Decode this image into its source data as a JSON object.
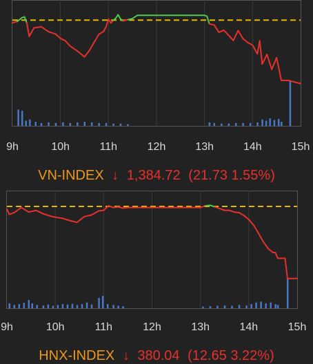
{
  "colors": {
    "background": "#222222",
    "up_line": "#4fc84f",
    "down_line": "#e8302d",
    "reference_line": "#e6b800",
    "volume_bar": "#4a78c9",
    "index_name": "#f0961b",
    "change_text": "#e8302d"
  },
  "chart_data": [
    {
      "type": "line",
      "name": "VN-INDEX",
      "x_tick_labels": [
        "9h",
        "10h",
        "11h",
        "12h",
        "13h",
        "14h",
        "15h"
      ],
      "xlim_hours": [
        9,
        15
      ],
      "grid": true,
      "reference_value": 1406.45,
      "ylim": [
        1378,
        1411
      ],
      "price": {
        "x": [
          9.0,
          9.1,
          9.2,
          9.25,
          9.3,
          9.35,
          9.45,
          9.6,
          9.75,
          9.9,
          10.0,
          10.1,
          10.2,
          10.35,
          10.5,
          10.6,
          10.7,
          10.8,
          10.9,
          10.95,
          11.0,
          11.05,
          11.1,
          11.15,
          11.2,
          11.25,
          11.3,
          11.4,
          11.5,
          11.6,
          11.7,
          11.8,
          12.0,
          13.0,
          13.05,
          13.1,
          13.2,
          13.3,
          13.4,
          13.5,
          13.6,
          13.7,
          13.8,
          13.9,
          14.0,
          14.1,
          14.15,
          14.2,
          14.3,
          14.4,
          14.5,
          14.6,
          14.75,
          15.0
        ],
        "y": [
          1405.5,
          1406.0,
          1407.3,
          1407.6,
          1405.5,
          1400.9,
          1403.8,
          1404.2,
          1402.5,
          1401.7,
          1400.2,
          1399.4,
          1397.6,
          1395.9,
          1393.9,
          1396.0,
          1398.8,
          1401.6,
          1402.6,
          1404.2,
          1406.8,
          1405.5,
          1406.4,
          1407.1,
          1408.3,
          1406.9,
          1406.2,
          1406.6,
          1407.0,
          1408.1,
          1408.1,
          1408.1,
          1408.1,
          1408.1,
          1407.8,
          1405.2,
          1404.8,
          1402.3,
          1403.0,
          1401.3,
          1399.5,
          1402.9,
          1400.1,
          1398.8,
          1397.9,
          1394.9,
          1399.4,
          1391.4,
          1394.7,
          1389.6,
          1393.6,
          1385.8,
          1385.8,
          1384.72
        ]
      },
      "volume": [
        {
          "x": 9.12,
          "v": 0.28
        },
        {
          "x": 9.2,
          "v": 0.26
        },
        {
          "x": 9.28,
          "v": 0.09
        },
        {
          "x": 9.36,
          "v": 0.11
        },
        {
          "x": 9.48,
          "v": 0.07
        },
        {
          "x": 9.6,
          "v": 0.05
        },
        {
          "x": 9.75,
          "v": 0.06
        },
        {
          "x": 9.9,
          "v": 0.05
        },
        {
          "x": 10.05,
          "v": 0.06
        },
        {
          "x": 10.2,
          "v": 0.05
        },
        {
          "x": 10.35,
          "v": 0.06
        },
        {
          "x": 10.5,
          "v": 0.07
        },
        {
          "x": 10.65,
          "v": 0.06
        },
        {
          "x": 10.8,
          "v": 0.05
        },
        {
          "x": 10.95,
          "v": 0.05
        },
        {
          "x": 11.1,
          "v": 0.04
        },
        {
          "x": 11.25,
          "v": 0.04
        },
        {
          "x": 11.4,
          "v": 0.03
        },
        {
          "x": 13.1,
          "v": 0.06
        },
        {
          "x": 13.2,
          "v": 0.05
        },
        {
          "x": 13.35,
          "v": 0.04
        },
        {
          "x": 13.5,
          "v": 0.04
        },
        {
          "x": 13.65,
          "v": 0.05
        },
        {
          "x": 13.8,
          "v": 0.05
        },
        {
          "x": 13.95,
          "v": 0.05
        },
        {
          "x": 14.1,
          "v": 0.06
        },
        {
          "x": 14.2,
          "v": 0.11
        },
        {
          "x": 14.28,
          "v": 0.09
        },
        {
          "x": 14.36,
          "v": 0.13
        },
        {
          "x": 14.45,
          "v": 0.1
        },
        {
          "x": 14.54,
          "v": 0.12
        },
        {
          "x": 14.6,
          "v": 0.07
        },
        {
          "x": 14.78,
          "v": 0.78
        }
      ],
      "label": {
        "name": "VN-INDEX",
        "arrow": "↓",
        "value": "1,384.72",
        "change": "(21.73 1.55%)"
      }
    },
    {
      "type": "line",
      "name": "HNX-INDEX",
      "x_tick_labels": [
        "9h",
        "10h",
        "11h",
        "12h",
        "13h",
        "14h",
        "15h"
      ],
      "xlim_hours": [
        9,
        15
      ],
      "grid": true,
      "reference_value": 392.69,
      "ylim": [
        377,
        394.5
      ],
      "price": {
        "x": [
          9.0,
          9.05,
          9.15,
          9.3,
          9.45,
          9.6,
          9.75,
          9.9,
          10.0,
          10.15,
          10.3,
          10.45,
          10.6,
          10.75,
          10.9,
          11.0,
          11.1,
          11.2,
          11.3,
          11.4,
          11.5,
          12.0,
          13.0,
          13.1,
          13.2,
          13.3,
          13.4,
          13.5,
          13.6,
          13.7,
          13.8,
          13.9,
          14.0,
          14.1,
          14.2,
          14.3,
          14.4,
          14.5,
          14.55,
          14.6,
          14.75,
          14.8,
          15.0
        ],
        "y": [
          392.2,
          391.3,
          391.6,
          392.5,
          391.7,
          392.0,
          391.4,
          391.0,
          390.8,
          390.6,
          390.2,
          389.9,
          390.9,
          391.2,
          391.9,
          392.0,
          392.8,
          392.5,
          392.6,
          392.4,
          392.5,
          392.5,
          392.5,
          392.8,
          392.9,
          392.6,
          392.3,
          392.0,
          392.0,
          391.7,
          391.6,
          391.1,
          390.4,
          389.4,
          388.0,
          386.5,
          385.3,
          384.6,
          384.6,
          383.6,
          383.6,
          380.04,
          380.04
        ]
      },
      "volume": [
        {
          "x": 9.05,
          "v": 0.12
        },
        {
          "x": 9.15,
          "v": 0.08
        },
        {
          "x": 9.25,
          "v": 0.1
        },
        {
          "x": 9.35,
          "v": 0.13
        },
        {
          "x": 9.45,
          "v": 0.2
        },
        {
          "x": 9.52,
          "v": 0.12
        },
        {
          "x": 9.62,
          "v": 0.08
        },
        {
          "x": 9.75,
          "v": 0.07
        },
        {
          "x": 9.85,
          "v": 0.09
        },
        {
          "x": 9.95,
          "v": 0.06
        },
        {
          "x": 10.05,
          "v": 0.08
        },
        {
          "x": 10.15,
          "v": 0.1
        },
        {
          "x": 10.25,
          "v": 0.09
        },
        {
          "x": 10.35,
          "v": 0.11
        },
        {
          "x": 10.45,
          "v": 0.08
        },
        {
          "x": 10.55,
          "v": 0.1
        },
        {
          "x": 10.65,
          "v": 0.14
        },
        {
          "x": 10.75,
          "v": 0.09
        },
        {
          "x": 10.9,
          "v": 0.25
        },
        {
          "x": 10.98,
          "v": 0.3
        },
        {
          "x": 11.08,
          "v": 0.1
        },
        {
          "x": 11.2,
          "v": 0.08
        },
        {
          "x": 11.3,
          "v": 0.06
        },
        {
          "x": 11.4,
          "v": 0.05
        },
        {
          "x": 13.05,
          "v": 0.04
        },
        {
          "x": 13.2,
          "v": 0.05
        },
        {
          "x": 13.35,
          "v": 0.06
        },
        {
          "x": 13.5,
          "v": 0.07
        },
        {
          "x": 13.65,
          "v": 0.06
        },
        {
          "x": 13.8,
          "v": 0.08
        },
        {
          "x": 13.95,
          "v": 0.07
        },
        {
          "x": 14.05,
          "v": 0.1
        },
        {
          "x": 14.15,
          "v": 0.14
        },
        {
          "x": 14.25,
          "v": 0.16
        },
        {
          "x": 14.35,
          "v": 0.12
        },
        {
          "x": 14.45,
          "v": 0.14
        },
        {
          "x": 14.55,
          "v": 0.1
        },
        {
          "x": 14.6,
          "v": 0.08
        },
        {
          "x": 14.8,
          "v": 0.72
        }
      ],
      "label": {
        "name": "HNX-INDEX",
        "arrow": "↓",
        "value": "380.04",
        "change": "(12.65 3.22%)"
      }
    }
  ]
}
